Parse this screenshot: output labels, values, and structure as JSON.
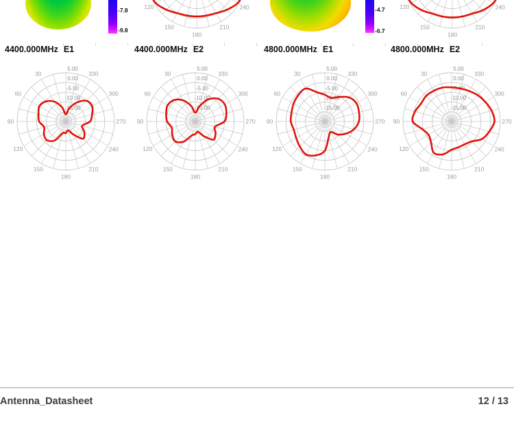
{
  "document": {
    "footer": {
      "title": "Antenna_Datasheet",
      "page_indicator": "12 / 13"
    }
  },
  "top_row": {
    "description_fragments": [
      "3d-radiation-pattern-bottom-fragment",
      "polar-plot-bottom-fragment"
    ],
    "blob_colors": [
      "#00c83c",
      "#8ade00",
      "#ffd200",
      "#ff8c00"
    ],
    "colorbars": [
      {
        "tick_labels": [
          "-7.8",
          "-9.8"
        ]
      },
      {
        "tick_labels": [
          "-4.7",
          "-6.7"
        ]
      }
    ]
  },
  "chart_data": {
    "type": "polar",
    "grid": {
      "angle_step_deg": 15,
      "angle_labels": [
        "30",
        "60",
        "90",
        "120",
        "150",
        "180",
        "210",
        "240",
        "270",
        "300",
        "330"
      ],
      "radial_labels": [
        "5.00",
        "0.00",
        "-5.00",
        "-10.00",
        "-15.00"
      ],
      "r_max_db": 5,
      "r_min_db": -20,
      "ring_step_db": 5,
      "trace_color": "#e01208",
      "grid_color": "#c6c6c6"
    },
    "plots": [
      {
        "title": "4400.000MHz E1",
        "freq": "4400.000MHz",
        "cut": "E1",
        "unit": "dB",
        "angles_deg": [
          0,
          15,
          30,
          45,
          60,
          75,
          90,
          105,
          120,
          135,
          150,
          165,
          180,
          195,
          210,
          225,
          240,
          255,
          270,
          285,
          300,
          315,
          330,
          345
        ],
        "gain_db": [
          -16.3,
          -12.5,
          -8.3,
          -5.5,
          -4.3,
          -5.5,
          -6.3,
          -8.5,
          -7.0,
          -6.3,
          -8.8,
          -13.8,
          -14.0,
          -15.3,
          -12.3,
          -7.5,
          -9.0,
          -11.3,
          -7.5,
          -6.0,
          -4.3,
          -5.0,
          -8.8,
          -13.0
        ]
      },
      {
        "title": "4400.000MHz E2",
        "freq": "4400.000MHz",
        "cut": "E2",
        "unit": "dB",
        "angles_deg": [
          0,
          15,
          30,
          45,
          60,
          75,
          90,
          105,
          120,
          135,
          150,
          165,
          180,
          195,
          210,
          225,
          240,
          255,
          270,
          285,
          300,
          315,
          330,
          345
        ],
        "gain_db": [
          -15.5,
          -11.8,
          -7.5,
          -4.5,
          -3.5,
          -4.5,
          -5.5,
          -7.5,
          -6.3,
          -5.5,
          -8.0,
          -12.5,
          -13.5,
          -14.5,
          -11.3,
          -6.8,
          -8.0,
          -9.5,
          -5.0,
          -3.5,
          -2.5,
          -3.5,
          -7.0,
          -12.0
        ]
      },
      {
        "title": "4800.000MHz E1",
        "freq": "4800.000MHz",
        "cut": "E1",
        "unit": "dB",
        "angles_deg": [
          0,
          15,
          30,
          45,
          60,
          75,
          90,
          105,
          120,
          135,
          150,
          165,
          180,
          195,
          210,
          225,
          240,
          255,
          270,
          285,
          300,
          315,
          330,
          345
        ],
        "gain_db": [
          -6.3,
          -4.5,
          -0.5,
          -0.8,
          -1.5,
          -2.3,
          -2.5,
          -3.5,
          -3.0,
          -1.8,
          -0.5,
          -2.0,
          -5.0,
          -12.0,
          -13.8,
          -10.5,
          -7.5,
          -4.5,
          -2.5,
          -1.8,
          -1.3,
          -2.5,
          -5.5,
          -7.5
        ]
      },
      {
        "title": "4800.000MHz E2",
        "freq": "4800.000MHz",
        "cut": "E2",
        "unit": "dB",
        "angles_deg": [
          0,
          15,
          30,
          45,
          60,
          75,
          90,
          105,
          120,
          135,
          150,
          165,
          180,
          195,
          210,
          225,
          240,
          255,
          270,
          285,
          300,
          315,
          330,
          345
        ],
        "gain_db": [
          -2.5,
          -2.0,
          -1.8,
          -1.5,
          -1.8,
          -0.5,
          0.0,
          -4.5,
          -6.3,
          -5.0,
          -1.5,
          -2.5,
          -5.5,
          -6.3,
          -6.5,
          -5.5,
          -2.0,
          0.0,
          2.0,
          1.3,
          0.0,
          -1.0,
          -2.0,
          -2.5
        ]
      }
    ],
    "cropped_top_plots": [
      {
        "note": "bottom half only visible, title cut off",
        "angles_deg": [
          0,
          15,
          30,
          45,
          60,
          75,
          90,
          105,
          120,
          135,
          150,
          165,
          180,
          195,
          210,
          225,
          240,
          255,
          270,
          285,
          300,
          315,
          330,
          345
        ],
        "gain_db": [
          -5,
          -3.8,
          -2,
          0,
          2,
          4,
          5,
          5,
          4.3,
          2,
          0,
          -0.8,
          -1,
          -0.8,
          0,
          2,
          4.3,
          5,
          5,
          4,
          2,
          0,
          -2,
          -3.8
        ]
      },
      {
        "note": "bottom half only visible, title cut off",
        "angles_deg": [
          0,
          15,
          30,
          45,
          60,
          75,
          90,
          105,
          120,
          135,
          150,
          165,
          180,
          195,
          210,
          225,
          240,
          255,
          270,
          285,
          300,
          315,
          330,
          345
        ],
        "gain_db": [
          -5,
          -3.8,
          -2,
          0,
          2,
          4,
          5,
          5,
          4.3,
          2.3,
          0.3,
          -0.3,
          -0.5,
          -0.3,
          0.3,
          2.3,
          4.3,
          5,
          5,
          4,
          2,
          0,
          -2,
          -3.8
        ]
      }
    ]
  }
}
